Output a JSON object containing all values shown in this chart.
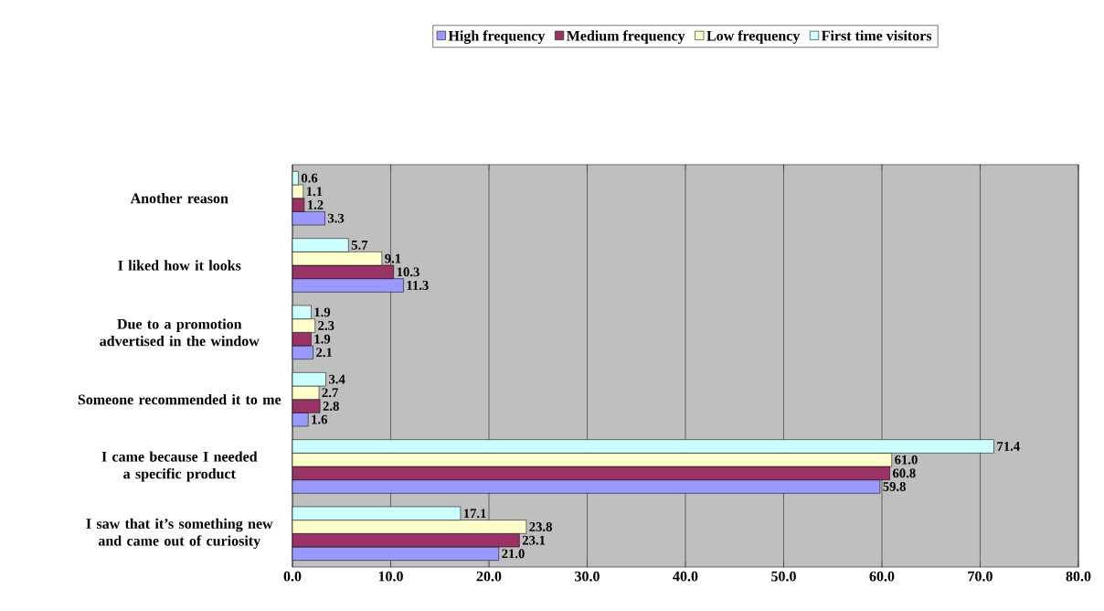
{
  "chart_data": {
    "type": "bar",
    "orientation": "horizontal",
    "categories": [
      "Another reason",
      "I liked how it looks",
      "Due to a promotion advertised in the window",
      "Someone recommended it to me",
      "I came because I needed a specific product",
      "I saw that it’s something new and came out of curiosity"
    ],
    "series": [
      {
        "name": "High frequency",
        "color": "#9999ff",
        "values": [
          3.3,
          11.3,
          2.1,
          1.6,
          59.8,
          21.0
        ],
        "value_labels": [
          "3.3",
          "11.3",
          "2.1",
          "1.6",
          "59.8",
          "21.0"
        ]
      },
      {
        "name": "Medium frequency",
        "color": "#993366",
        "values": [
          1.2,
          10.3,
          1.9,
          2.8,
          60.8,
          23.1
        ],
        "value_labels": [
          "1.2",
          "10.3",
          "1.9",
          "2.8",
          "60.8",
          "23.1"
        ]
      },
      {
        "name": "Low frequency",
        "color": "#ffffcc",
        "values": [
          1.1,
          9.1,
          2.3,
          2.7,
          61.0,
          23.8
        ],
        "value_labels": [
          "1.1",
          "9.1",
          "2.3",
          "2.7",
          "61.0",
          "23.8"
        ]
      },
      {
        "name": "First time visitors",
        "color": "#ccffff",
        "values": [
          0.6,
          5.7,
          1.9,
          3.4,
          71.4,
          17.1
        ],
        "value_labels": [
          "0.6",
          "5.7",
          "1.9",
          "3.4",
          "71.4",
          "17.1"
        ]
      }
    ],
    "xlim": [
      0,
      80
    ],
    "xticks": [
      {
        "value": 0,
        "label": "0.0"
      },
      {
        "value": 10,
        "label": "10.0"
      },
      {
        "value": 20,
        "label": "20.0"
      },
      {
        "value": 30,
        "label": "30.0"
      },
      {
        "value": 40,
        "label": "40.0"
      },
      {
        "value": 50,
        "label": "50.0"
      },
      {
        "value": 60,
        "label": "60.0"
      },
      {
        "value": 70,
        "label": "70.0"
      },
      {
        "value": 80,
        "label": "80.0"
      }
    ],
    "grid": "x",
    "legend": "top"
  }
}
